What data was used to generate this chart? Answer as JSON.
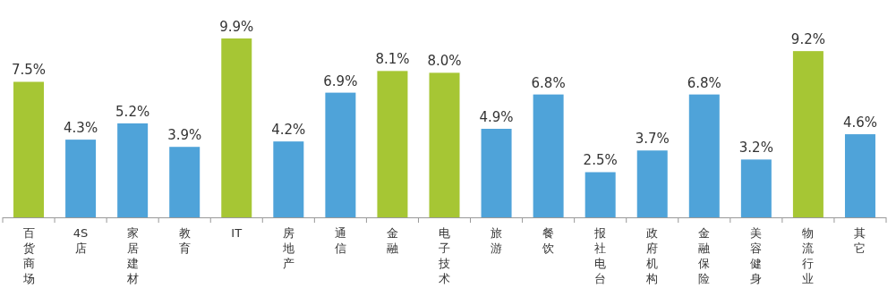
{
  "chart_data": {
    "type": "bar",
    "categories": [
      "百货商场",
      "4S店",
      "家居建材",
      "教育",
      "IT",
      "房地产",
      "通信",
      "金融",
      "电子技术",
      "旅游",
      "餐饮",
      "报社电台",
      "政府机构",
      "金融保险",
      "美容健身",
      "物流行业",
      "其它"
    ],
    "values": [
      7.5,
      4.3,
      5.2,
      3.9,
      9.9,
      4.2,
      6.9,
      8.1,
      8.0,
      4.9,
      6.8,
      2.5,
      3.7,
      6.8,
      3.2,
      9.2,
      4.6
    ],
    "colors": [
      "#a6c634",
      "#4fa3d9",
      "#4fa3d9",
      "#4fa3d9",
      "#a6c634",
      "#4fa3d9",
      "#4fa3d9",
      "#a6c634",
      "#a6c634",
      "#4fa3d9",
      "#4fa3d9",
      "#4fa3d9",
      "#4fa3d9",
      "#4fa3d9",
      "#4fa3d9",
      "#a6c634",
      "#4fa3d9"
    ],
    "value_labels": [
      "7.5%",
      "4.3%",
      "5.2%",
      "3.9%",
      "9.9%",
      "4.2%",
      "6.9%",
      "8.1%",
      "8.0%",
      "4.9%",
      "6.8%",
      "2.5%",
      "3.7%",
      "6.8%",
      "3.2%",
      "9.2%",
      "4.6%"
    ]
  }
}
